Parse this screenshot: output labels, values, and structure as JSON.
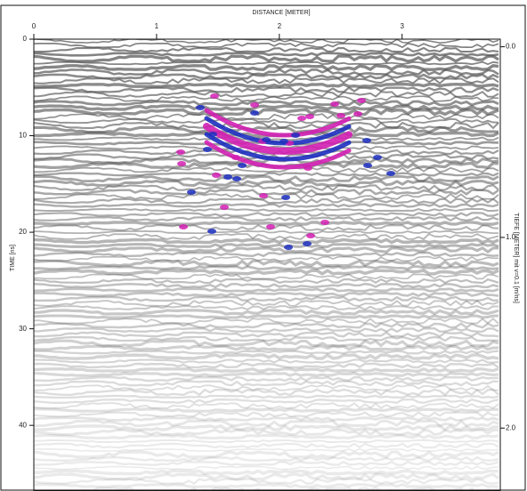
{
  "chart_data": {
    "type": "radargram",
    "xlabel": "DISTANCE [METER]",
    "ylabel": "TIME [ns]",
    "y2label": "TIEFE [METER] mit v=0.1 [m/ns]",
    "xlim": [
      0,
      3.8
    ],
    "xticks": [
      0,
      1,
      2,
      3
    ],
    "ylim": [
      0,
      46.8
    ],
    "yticks": [
      0,
      10,
      20,
      30,
      40
    ],
    "y2lim": [
      -0.04,
      2.33
    ],
    "y2ticks": [
      {
        "value": 0,
        "label": "0.0"
      },
      {
        "value": 1,
        "label": "1.0"
      },
      {
        "value": 2,
        "label": "2.0"
      }
    ]
  }
}
